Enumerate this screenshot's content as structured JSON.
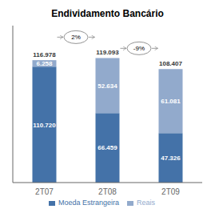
{
  "chart_data": {
    "type": "bar",
    "title": "Endividamento Bancário",
    "categories": [
      "2T07",
      "2T08",
      "2T09"
    ],
    "series": [
      {
        "name": "Moeda Estrangeira",
        "color": "#4472A8",
        "values": [
          110720,
          66459,
          47326
        ],
        "value_labels": [
          "110.720",
          "66.459",
          "47.326"
        ]
      },
      {
        "name": "Reais",
        "color": "#92AACC",
        "values": [
          6258,
          52634,
          61081
        ],
        "value_labels": [
          "6.258",
          "52.634",
          "61.081"
        ]
      }
    ],
    "totals": [
      116978,
      119093,
      108407
    ],
    "total_labels": [
      "116.978",
      "119.093",
      "108.407"
    ],
    "annotations": [
      "2%",
      "-9%"
    ],
    "ylim": [
      0,
      150000
    ],
    "stacked": true,
    "data_labels": true,
    "tick_labels": "x",
    "grid": false,
    "legend": "bottom"
  }
}
